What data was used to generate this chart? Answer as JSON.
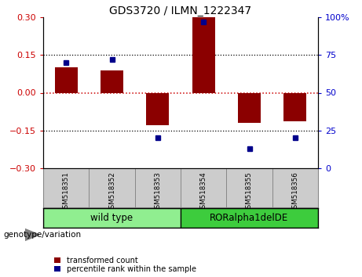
{
  "title": "GDS3720 / ILMN_1222347",
  "samples": [
    "GSM518351",
    "GSM518352",
    "GSM518353",
    "GSM518354",
    "GSM518355",
    "GSM518356"
  ],
  "transformed_count": [
    0.1,
    0.09,
    -0.13,
    0.3,
    -0.12,
    -0.115
  ],
  "percentile_rank": [
    70,
    72,
    20,
    97,
    13,
    20
  ],
  "ylim_left": [
    -0.3,
    0.3
  ],
  "ylim_right": [
    0,
    100
  ],
  "yticks_left": [
    -0.3,
    -0.15,
    0,
    0.15,
    0.3
  ],
  "yticks_right": [
    0,
    25,
    50,
    75,
    100
  ],
  "hlines": [
    0.15,
    -0.15
  ],
  "bar_color": "#8B0000",
  "dot_color": "#00008B",
  "zero_line_color": "#cc0000",
  "background_color": "#ffffff",
  "group1_label": "wild type",
  "group2_label": "RORalpha1delDE",
  "group1_indices": [
    0,
    1,
    2
  ],
  "group2_indices": [
    3,
    4,
    5
  ],
  "group1_color": "#90EE90",
  "group2_color": "#3DCC3D",
  "genotype_label": "genotype/variation",
  "legend_red_label": "transformed count",
  "legend_blue_label": "percentile rank within the sample",
  "tick_color_left": "#cc0000",
  "tick_color_right": "#0000cc",
  "bar_width": 0.5,
  "cell_bg": "#cccccc",
  "figsize": [
    4.61,
    3.54
  ],
  "dpi": 100
}
